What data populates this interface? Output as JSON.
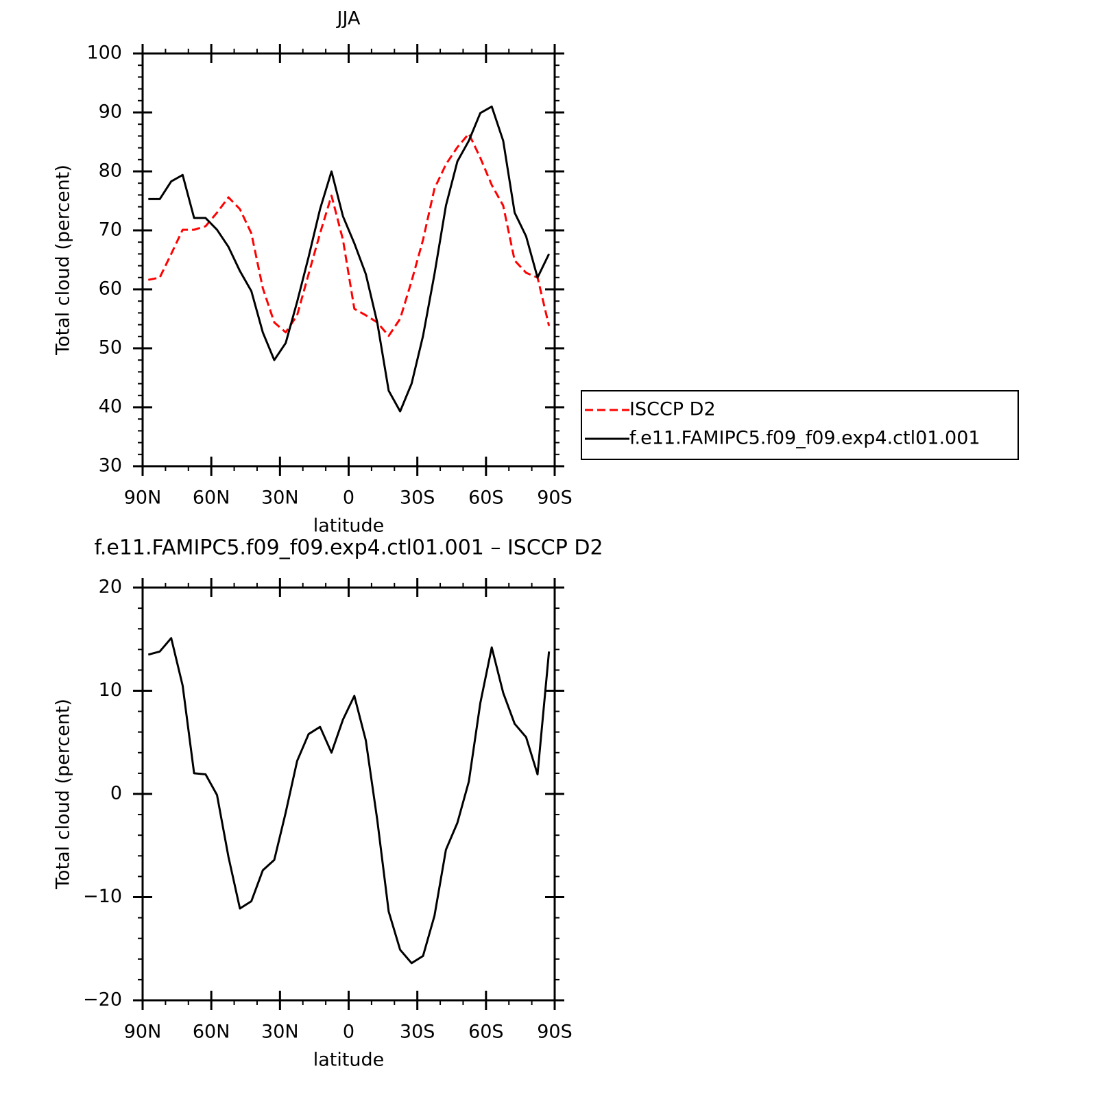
{
  "chart_data": [
    {
      "type": "line",
      "title": "JJA",
      "xlabel": "latitude",
      "ylabel": "Total cloud (percent)",
      "x": [
        87.5,
        82.5,
        77.5,
        72.5,
        67.5,
        62.5,
        57.5,
        52.5,
        47.5,
        42.5,
        37.5,
        32.5,
        27.5,
        22.5,
        17.5,
        12.5,
        7.5,
        2.5,
        -2.5,
        -7.5,
        -12.5,
        -17.5,
        -22.5,
        -27.5,
        -32.5,
        -37.5,
        -42.5,
        -47.5,
        -52.5,
        -57.5,
        -62.5,
        -67.5,
        -72.5,
        -77.5,
        -82.5,
        -87.5
      ],
      "series": [
        {
          "name": "ISCCP D2",
          "color": "#ff0000",
          "linestyle": "dashed",
          "values": [
            61.6,
            62,
            66,
            70.1,
            70.1,
            70.7,
            73,
            75.6,
            73.6,
            69.5,
            60.2,
            54.4,
            52.7,
            55.6,
            62.6,
            69.5,
            75.9,
            68.4,
            56.7,
            55.6,
            54.4,
            52.1,
            55,
            61.4,
            68.4,
            77.1,
            81.2,
            84.1,
            86.4,
            82.3,
            77.7,
            74.2,
            64.9,
            62.8,
            62,
            53.8
          ]
        },
        {
          "name": "f.e11.FAMIPC5.f09_f09.exp4.ctl01.001",
          "color": "#000000",
          "linestyle": "solid",
          "values": [
            75.3,
            75.3,
            78.3,
            79.4,
            72.1,
            72.1,
            70.1,
            67.2,
            63.1,
            59.7,
            52.7,
            48,
            50.9,
            57.9,
            65.5,
            73.6,
            80,
            72.4,
            67.8,
            62.6,
            54.4,
            42.8,
            39.3,
            44,
            52.1,
            62.6,
            74.2,
            81.7,
            85.2,
            89.9,
            91,
            85.2,
            73,
            69,
            62,
            66
          ]
        }
      ],
      "xlim": [
        90,
        -90
      ],
      "xticks": [
        {
          "value": 90,
          "label": "90N"
        },
        {
          "value": 60,
          "label": "60N"
        },
        {
          "value": 30,
          "label": "30N"
        },
        0,
        {
          "value": -30,
          "label": "30S"
        },
        {
          "value": -60,
          "label": "60S"
        },
        {
          "value": -90,
          "label": "90S"
        }
      ],
      "ylim": [
        30,
        100
      ],
      "yticks": [
        30,
        40,
        50,
        60,
        70,
        80,
        90,
        100
      ],
      "legend": "right"
    },
    {
      "type": "line",
      "title": "f.e11.FAMIPC5.f09_f09.exp4.ctl01.001 – ISCCP D2",
      "xlabel": "latitude",
      "ylabel": "Total cloud (percent)",
      "x": [
        87.5,
        82.5,
        77.5,
        72.5,
        67.5,
        62.5,
        57.5,
        52.5,
        47.5,
        42.5,
        37.5,
        32.5,
        27.5,
        22.5,
        17.5,
        12.5,
        7.5,
        2.5,
        -2.5,
        -7.5,
        -12.5,
        -17.5,
        -22.5,
        -27.5,
        -32.5,
        -37.5,
        -42.5,
        -47.5,
        -52.5,
        -57.5,
        -62.5,
        -67.5,
        -72.5,
        -77.5,
        -82.5,
        -87.5
      ],
      "series": [
        {
          "color": "#000000",
          "linestyle": "solid",
          "values": [
            13.5,
            13.8,
            15.1,
            10.5,
            2,
            1.9,
            -0.1,
            -6.1,
            -11.1,
            -10.4,
            -7.4,
            -6.4,
            -1.8,
            3.2,
            5.8,
            6.5,
            4,
            7.2,
            9.5,
            5.2,
            -2.5,
            -11.4,
            -15.1,
            -16.4,
            -15.7,
            -11.8,
            -5.4,
            -2.8,
            1.2,
            8.8,
            14.2,
            9.8,
            6.8,
            5.5,
            1.9,
            13.8
          ]
        }
      ],
      "xlim": [
        90,
        -90
      ],
      "xticks": [
        {
          "value": 90,
          "label": "90N"
        },
        {
          "value": 60,
          "label": "60N"
        },
        {
          "value": 30,
          "label": "30N"
        },
        0,
        {
          "value": -30,
          "label": "30S"
        },
        {
          "value": -60,
          "label": "60S"
        },
        {
          "value": -90,
          "label": "90S"
        }
      ],
      "ylim": [
        -20,
        20
      ],
      "yticks": [
        {
          "value": -20,
          "label": "−20"
        },
        {
          "value": -10,
          "label": "−10"
        },
        0,
        10,
        20
      ]
    }
  ]
}
